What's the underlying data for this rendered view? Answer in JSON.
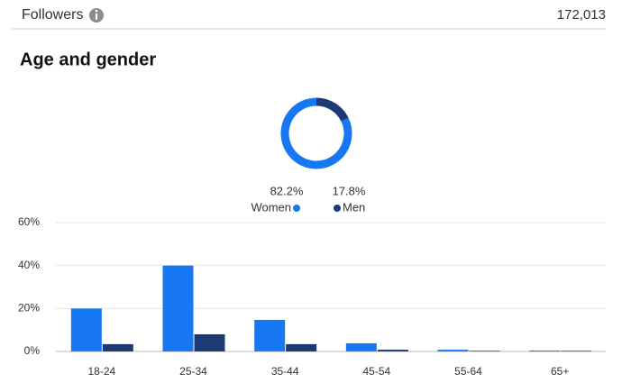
{
  "header": {
    "label": "Followers",
    "value": "172,013"
  },
  "section_title": "Age and gender",
  "chart_data": [
    {
      "type": "pie",
      "categories": [
        "Women",
        "Men"
      ],
      "values": [
        82.2,
        17.8
      ],
      "value_labels": [
        "82.2%",
        "17.8%"
      ],
      "colors": [
        "#1877f2",
        "#1d3a75"
      ]
    },
    {
      "type": "bar",
      "categories": [
        "18-24",
        "25-34",
        "35-44",
        "45-54",
        "55-64",
        "65+"
      ],
      "series": [
        {
          "color": "#1877f2",
          "values": [
            20,
            40,
            14.7,
            3.8,
            0.8,
            0.4
          ]
        },
        {
          "color": "#1d3a75",
          "values": [
            3.4,
            8,
            3.4,
            0.8,
            0.3,
            0.3
          ]
        }
      ],
      "ylim": [
        0,
        60
      ],
      "yticks": [
        {
          "value": 0,
          "label": "0%"
        },
        {
          "value": 20,
          "label": "20%"
        },
        {
          "value": 40,
          "label": "40%"
        },
        {
          "value": 60,
          "label": "60%"
        }
      ],
      "grid": true
    }
  ]
}
